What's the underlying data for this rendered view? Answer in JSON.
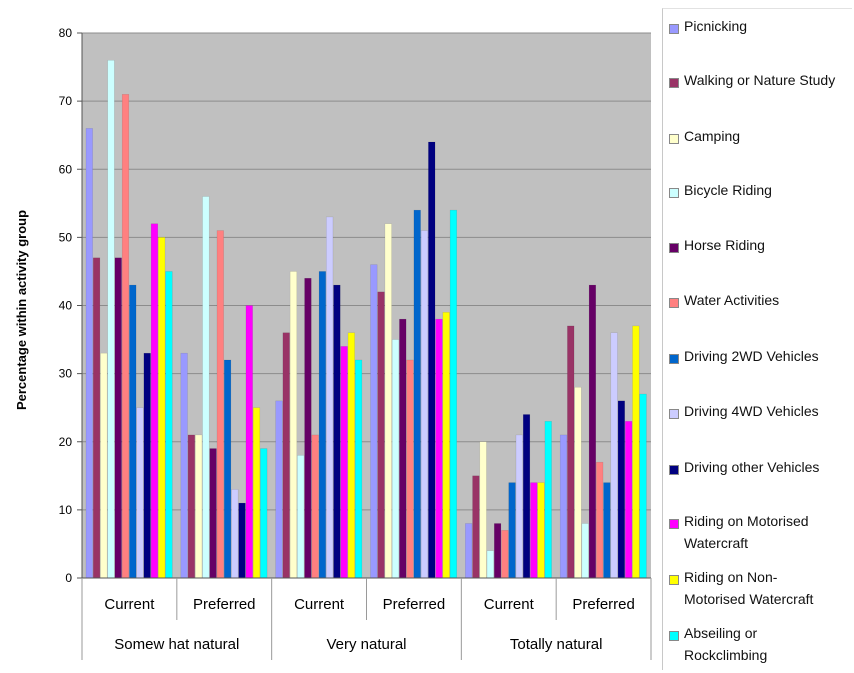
{
  "chart_data": {
    "type": "bar",
    "ylabel": "Percentage within activity group",
    "ylim": [
      0,
      80
    ],
    "yticks": [
      0,
      10,
      20,
      30,
      40,
      50,
      60,
      70,
      80
    ],
    "grid": true,
    "legend_position": "right",
    "categories": [
      "Current",
      "Preferred",
      "Current",
      "Preferred",
      "Current",
      "Preferred"
    ],
    "groups": [
      "Somew hat natural",
      "Very natural",
      "Totally natural"
    ],
    "series": [
      {
        "name": "Picnicking",
        "color": "#9999ff",
        "values": [
          66,
          33,
          26,
          46,
          8,
          21
        ]
      },
      {
        "name": "Walking or Nature Study",
        "color": "#993366",
        "values": [
          47,
          21,
          36,
          42,
          15,
          37
        ]
      },
      {
        "name": "Camping",
        "color": "#ffffcc",
        "values": [
          33,
          21,
          45,
          52,
          20,
          28
        ]
      },
      {
        "name": "Bicycle Riding",
        "color": "#ccffff",
        "values": [
          76,
          56,
          18,
          35,
          4,
          8
        ]
      },
      {
        "name": "Horse Riding",
        "color": "#660066",
        "values": [
          47,
          19,
          44,
          38,
          8,
          43
        ]
      },
      {
        "name": "Water Activities",
        "color": "#ff8080",
        "values": [
          71,
          51,
          21,
          32,
          7,
          17
        ]
      },
      {
        "name": "Driving 2WD Vehicles",
        "color": "#0066cc",
        "values": [
          43,
          32,
          45,
          54,
          14,
          14
        ]
      },
      {
        "name": "Driving 4WD Vehicles",
        "color": "#ccccff",
        "values": [
          25,
          13,
          53,
          51,
          21,
          36
        ]
      },
      {
        "name": "Driving other Vehicles",
        "color": "#000080",
        "values": [
          33,
          11,
          43,
          64,
          24,
          26
        ]
      },
      {
        "name": "Riding on Motorised\nWatercraft",
        "color": "#ff00ff",
        "values": [
          52,
          40,
          34,
          38,
          14,
          23
        ]
      },
      {
        "name": "Riding on Non-\nMotorised Watercraft",
        "color": "#ffff00",
        "values": [
          50,
          25,
          36,
          39,
          14,
          37
        ]
      },
      {
        "name": "Abseiling or\nRockclimbing",
        "color": "#00ffff",
        "values": [
          45,
          19,
          32,
          54,
          23,
          27
        ]
      }
    ]
  }
}
